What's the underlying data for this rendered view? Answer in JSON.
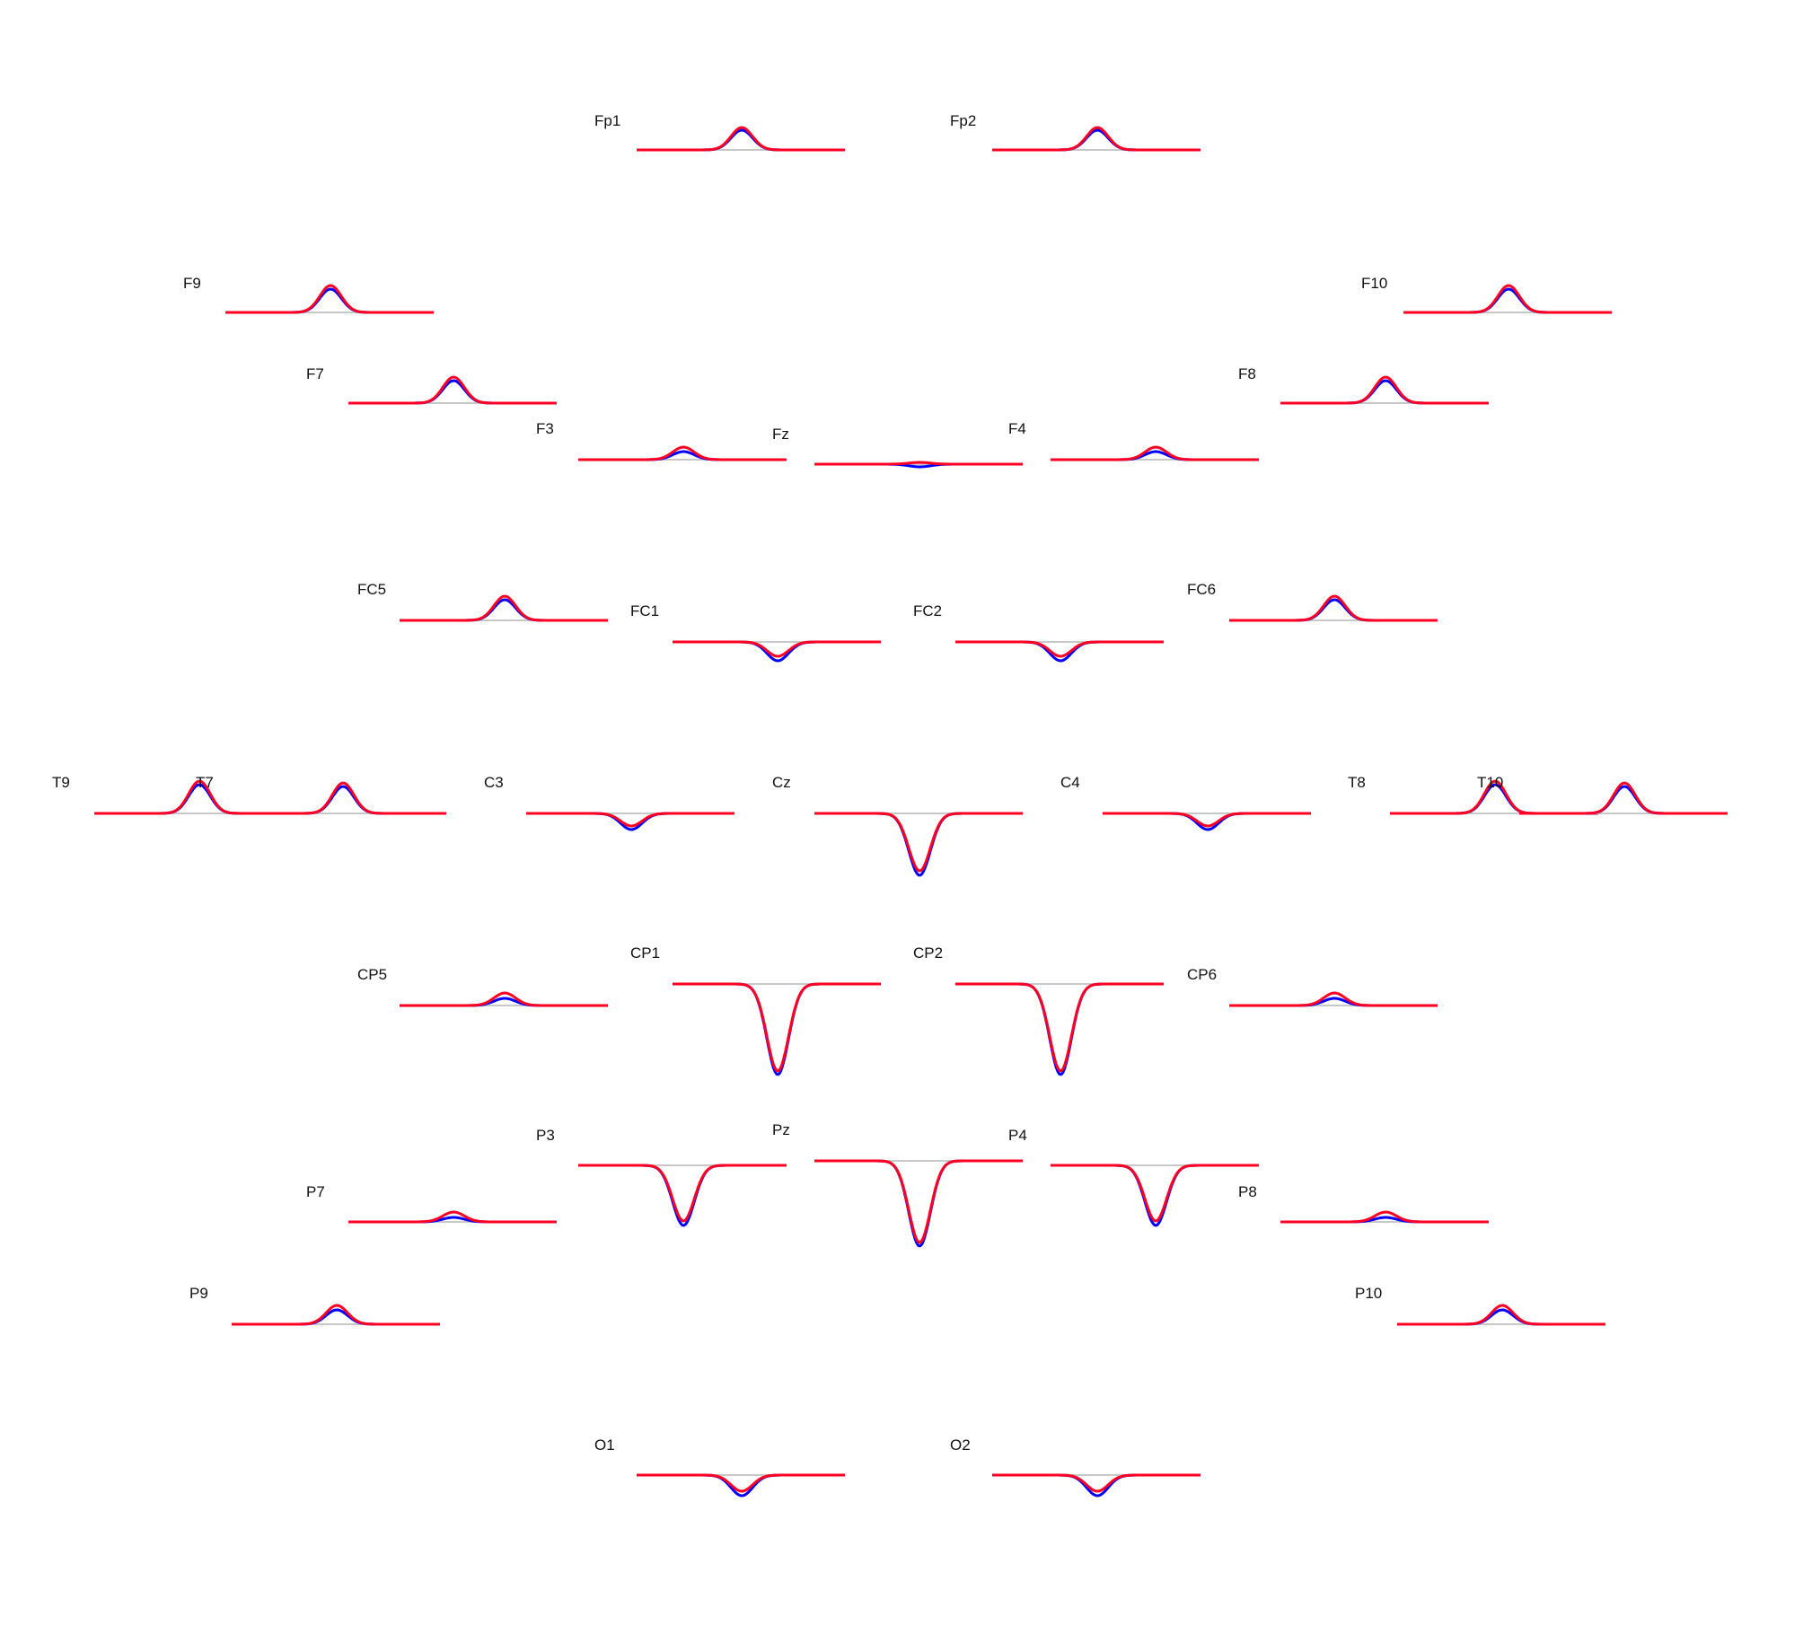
{
  "chart_data": {
    "type": "line",
    "layout": "eeg-topographic-erp",
    "colors": {
      "baseline": "#c8c8c8",
      "series_a": "#0000ff",
      "series_b": "#ff0022"
    },
    "series": [
      {
        "color": "#0000ff"
      },
      {
        "color": "#ff0022"
      }
    ],
    "channels": [
      {
        "name": "Fp1",
        "peak": [
          22,
          25
        ]
      },
      {
        "name": "Fp2",
        "peak": [
          22,
          25
        ]
      },
      {
        "name": "F9",
        "peak": [
          26,
          30
        ]
      },
      {
        "name": "F10",
        "peak": [
          26,
          30
        ]
      },
      {
        "name": "F7",
        "peak": [
          25,
          29
        ]
      },
      {
        "name": "F8",
        "peak": [
          25,
          29
        ]
      },
      {
        "name": "F3",
        "peak": [
          9,
          14
        ]
      },
      {
        "name": "Fz",
        "peak": [
          -3,
          2
        ]
      },
      {
        "name": "F4",
        "peak": [
          9,
          14
        ]
      },
      {
        "name": "FC5",
        "peak": [
          23,
          27
        ]
      },
      {
        "name": "FC1",
        "peak": [
          -21,
          -16
        ]
      },
      {
        "name": "FC2",
        "peak": [
          -21,
          -16
        ]
      },
      {
        "name": "FC6",
        "peak": [
          23,
          27
        ]
      },
      {
        "name": "T9",
        "peak": [
          32,
          36
        ]
      },
      {
        "name": "T7",
        "peak": [
          30,
          34
        ]
      },
      {
        "name": "C3",
        "peak": [
          -18,
          -14
        ]
      },
      {
        "name": "Cz",
        "peak": [
          -69,
          -64
        ]
      },
      {
        "name": "C4",
        "peak": [
          -18,
          -14
        ]
      },
      {
        "name": "T8",
        "peak": [
          32,
          36
        ]
      },
      {
        "name": "T10",
        "peak": [
          30,
          34
        ]
      },
      {
        "name": "CP5",
        "peak": [
          8,
          14
        ]
      },
      {
        "name": "CP1",
        "peak": [
          -101,
          -97
        ]
      },
      {
        "name": "CP2",
        "peak": [
          -101,
          -97
        ]
      },
      {
        "name": "CP6",
        "peak": [
          8,
          14
        ]
      },
      {
        "name": "P3",
        "peak": [
          -67,
          -62
        ]
      },
      {
        "name": "Pz",
        "peak": [
          -95,
          -91
        ]
      },
      {
        "name": "P4",
        "peak": [
          -67,
          -62
        ]
      },
      {
        "name": "P7",
        "peak": [
          5,
          11
        ]
      },
      {
        "name": "P8",
        "peak": [
          5,
          11
        ]
      },
      {
        "name": "P9",
        "peak": [
          16,
          21
        ]
      },
      {
        "name": "P10",
        "peak": [
          16,
          21
        ]
      },
      {
        "name": "O1",
        "peak": [
          -23,
          -18
        ]
      },
      {
        "name": "O2",
        "peak": [
          -23,
          -18
        ]
      }
    ]
  }
}
